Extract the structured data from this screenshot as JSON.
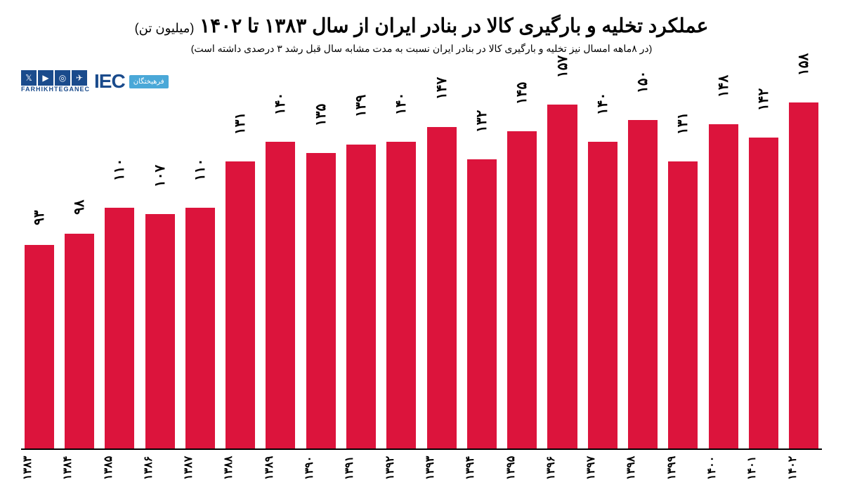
{
  "chart": {
    "type": "bar",
    "title_main": "عملکرد تخلیه و بارگیری کالا در بنادر ایران از سال ۱۳۸۳ تا ۱۴۰۲",
    "title_unit": "(میلیون تن)",
    "subtitle": "(در ۸ماهه امسال نیز تخلیه و بارگیری کالا در بنادر ایران نسبت به مدت مشابه سال قبل رشد ۳ درصدی داشته است)",
    "title_fontsize": 28,
    "subtitle_fontsize": 14,
    "bar_color": "#dc143c",
    "background_color": "#ffffff",
    "axis_color": "#000000",
    "label_color": "#000000",
    "ylim": [
      0,
      160
    ],
    "bar_width_ratio": 0.82,
    "categories": [
      "۱۳۸۳",
      "۱۳۸۴",
      "۱۳۸۵",
      "۱۳۸۶",
      "۱۳۸۷",
      "۱۳۸۸",
      "۱۳۸۹",
      "۱۳۹۰",
      "۱۳۹۱",
      "۱۳۹۲",
      "۱۳۹۳",
      "۱۳۹۴",
      "۱۳۹۵",
      "۱۳۹۶",
      "۱۳۹۷",
      "۱۳۹۸",
      "۱۳۹۹",
      "۱۴۰۰",
      "۱۴۰۱",
      "۱۴۰۲"
    ],
    "values": [
      93,
      98,
      110,
      107,
      110,
      131,
      140,
      135,
      139,
      140,
      147,
      132,
      145,
      157,
      140,
      150,
      131,
      148,
      142,
      158
    ],
    "value_labels": [
      "۹۳",
      "۹۸",
      "۱۱۰",
      "۱۰۷",
      "۱۱۰",
      "۱۳۱",
      "۱۴۰",
      "۱۳۵",
      "۱۳۹",
      "۱۴۰",
      "۱۴۷",
      "۱۳۲",
      "۱۴۵",
      "۱۵۷",
      "۱۴۰",
      "۱۵۰",
      "۱۳۱",
      "۱۴۸",
      "۱۴۲",
      "۱۵۸"
    ]
  },
  "branding": {
    "handle": "FARHIKHTEGANEC",
    "logo_text": "IEC",
    "badge_text": "فرهیختگان",
    "logo_color": "#1a4b8c",
    "badge_color": "#4aa8d8",
    "social_icons": [
      "x-icon",
      "youtube-icon",
      "instagram-icon",
      "telegram-icon"
    ]
  }
}
